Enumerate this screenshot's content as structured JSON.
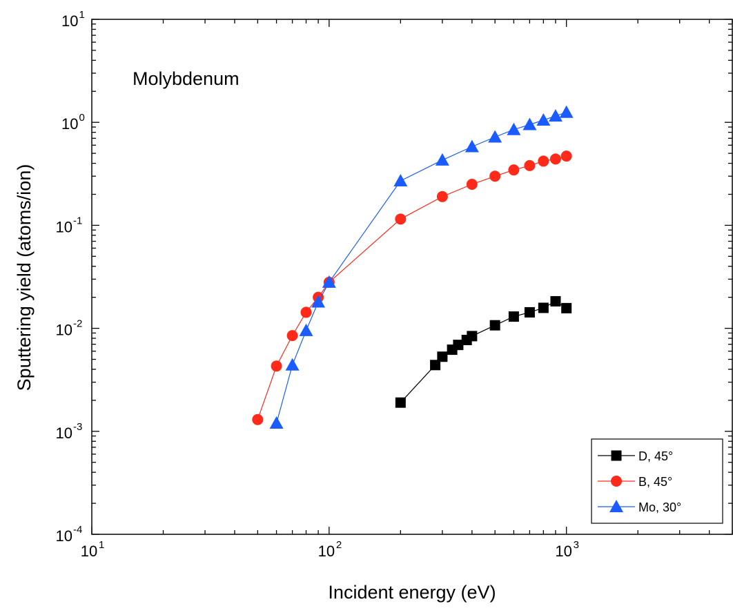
{
  "chart_data": {
    "type": "line",
    "xscale": "log",
    "yscale": "log",
    "xlim": [
      10,
      5000
    ],
    "ylim": [
      0.0001,
      10
    ],
    "xlabel": "Incident energy (eV)",
    "ylabel": "Sputtering yield (atoms/ion)",
    "annotation": "Molybdenum",
    "x_ticks": [
      {
        "value": 10,
        "base": "10",
        "exp": "1"
      },
      {
        "value": 100,
        "base": "10",
        "exp": "2"
      },
      {
        "value": 1000,
        "base": "10",
        "exp": "3"
      }
    ],
    "y_ticks": [
      {
        "value": 0.0001,
        "base": "10",
        "exp": "-4"
      },
      {
        "value": 0.001,
        "base": "10",
        "exp": "-3"
      },
      {
        "value": 0.01,
        "base": "10",
        "exp": "-2"
      },
      {
        "value": 0.1,
        "base": "10",
        "exp": "-1"
      },
      {
        "value": 1,
        "base": "10",
        "exp": "0"
      },
      {
        "value": 10,
        "base": "10",
        "exp": "1"
      }
    ],
    "legend_position": "bottom-right",
    "series": [
      {
        "name": "D, 45°",
        "marker": "square",
        "color": "#000000",
        "points": [
          [
            200,
            0.0019
          ],
          [
            280,
            0.0044
          ],
          [
            300,
            0.0053
          ],
          [
            330,
            0.0062
          ],
          [
            350,
            0.0069
          ],
          [
            380,
            0.0077
          ],
          [
            400,
            0.0084
          ],
          [
            500,
            0.0107
          ],
          [
            600,
            0.013
          ],
          [
            700,
            0.0143
          ],
          [
            800,
            0.0158
          ],
          [
            900,
            0.0183
          ],
          [
            1000,
            0.0157
          ]
        ]
      },
      {
        "name": "B, 45°",
        "marker": "circle",
        "color": "#ff2a1a",
        "points": [
          [
            50,
            0.0013
          ],
          [
            60,
            0.0043
          ],
          [
            70,
            0.0085
          ],
          [
            80,
            0.0143
          ],
          [
            90,
            0.02
          ],
          [
            100,
            0.028
          ],
          [
            200,
            0.115
          ],
          [
            300,
            0.19
          ],
          [
            400,
            0.25
          ],
          [
            500,
            0.3
          ],
          [
            600,
            0.345
          ],
          [
            700,
            0.38
          ],
          [
            800,
            0.42
          ],
          [
            900,
            0.44
          ],
          [
            1000,
            0.47
          ]
        ]
      },
      {
        "name": "Mo, 30°",
        "marker": "triangle",
        "color": "#1a5cff",
        "points": [
          [
            60,
            0.0012
          ],
          [
            70,
            0.0044
          ],
          [
            80,
            0.0095
          ],
          [
            90,
            0.018
          ],
          [
            100,
            0.028
          ],
          [
            200,
            0.27
          ],
          [
            300,
            0.43
          ],
          [
            400,
            0.58
          ],
          [
            500,
            0.72
          ],
          [
            600,
            0.85
          ],
          [
            700,
            0.95
          ],
          [
            800,
            1.05
          ],
          [
            900,
            1.15
          ],
          [
            1000,
            1.25
          ]
        ]
      }
    ]
  }
}
